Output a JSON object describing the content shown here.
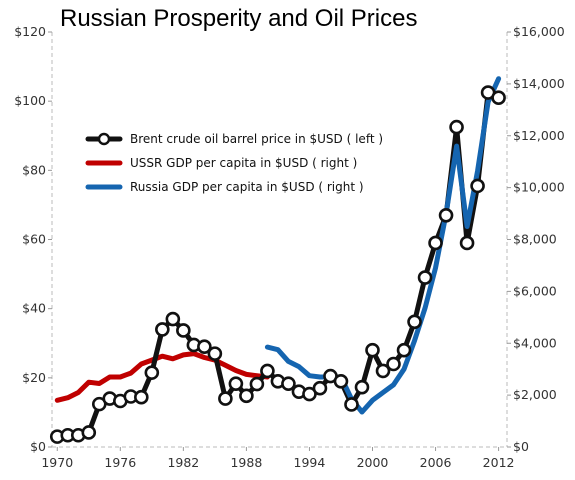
{
  "chart_data": {
    "type": "line",
    "title": "Russian Prosperity and Oil Prices",
    "xlabel": "",
    "ylabel": "",
    "y2label": "",
    "x_ticks": [
      "1970",
      "1976",
      "1982",
      "1988",
      "1994",
      "2000",
      "2006",
      "2012"
    ],
    "y_left_ticks": [
      "$0",
      "$20",
      "$40",
      "$60",
      "$80",
      "$100",
      "$120"
    ],
    "y_right_ticks": [
      "$0",
      "$2,000",
      "$4,000",
      "$6,000",
      "$8,000",
      "$10,000",
      "$12,000",
      "$14,000",
      "$16,000"
    ],
    "xlim": [
      1969.5,
      2012.8
    ],
    "ylim_left": [
      0,
      120
    ],
    "ylim_right": [
      0,
      16000
    ],
    "legend_position": "upper-left",
    "series": [
      {
        "name": "Brent crude oil barrel price in $USD ( left )",
        "axis": "left",
        "color": "#111111",
        "marker": "circle",
        "x": [
          1970,
          1971,
          1972,
          1973,
          1974,
          1975,
          1976,
          1977,
          1978,
          1979,
          1980,
          1981,
          1982,
          1983,
          1984,
          1985,
          1986,
          1987,
          1988,
          1989,
          1990,
          1991,
          1992,
          1993,
          1994,
          1995,
          1996,
          1997,
          1998,
          1999,
          2000,
          2001,
          2002,
          2003,
          2004,
          2005,
          2006,
          2007,
          2008,
          2009,
          2010,
          2011,
          2012
        ],
        "y": [
          3.0,
          3.4,
          3.4,
          4.2,
          12.4,
          14.0,
          13.3,
          14.6,
          14.4,
          21.5,
          34.0,
          37.0,
          33.7,
          29.5,
          29.0,
          27.0,
          14.0,
          18.3,
          14.8,
          18.2,
          22.0,
          19.0,
          18.3,
          16.0,
          15.3,
          17.0,
          20.5,
          19.0,
          12.3,
          17.3,
          28.0,
          22.0,
          24.0,
          28.0,
          36.2,
          49.0,
          59.0,
          67.0,
          92.5,
          59.0,
          75.5,
          102.5,
          101.0
        ]
      },
      {
        "name": "USSR GDP per capita in $USD ( right )",
        "axis": "right",
        "color": "#c00000",
        "x": [
          1970,
          1971,
          1972,
          1973,
          1974,
          1975,
          1976,
          1977,
          1978,
          1979,
          1980,
          1981,
          1982,
          1983,
          1984,
          1985,
          1986,
          1987,
          1988,
          1989,
          1990
        ],
        "y": [
          1800,
          1900,
          2100,
          2500,
          2450,
          2700,
          2700,
          2850,
          3200,
          3350,
          3500,
          3400,
          3550,
          3600,
          3450,
          3350,
          3150,
          2950,
          2800,
          2750,
          2700
        ]
      },
      {
        "name": "Russia GDP per capita in $USD ( right )",
        "axis": "right",
        "color": "#1565b0",
        "x": [
          1990,
          1991,
          1992,
          1993,
          1994,
          1995,
          1996,
          1997,
          1998,
          1999,
          2000,
          2001,
          2002,
          2003,
          2004,
          2005,
          2006,
          2007,
          2008,
          2009,
          2010,
          2011,
          2012
        ],
        "y": [
          3850,
          3750,
          3300,
          3100,
          2750,
          2700,
          2700,
          2700,
          1850,
          1350,
          1800,
          2100,
          2400,
          3000,
          4100,
          5350,
          6900,
          9000,
          11600,
          8500,
          10650,
          13300,
          14200
        ]
      }
    ]
  }
}
